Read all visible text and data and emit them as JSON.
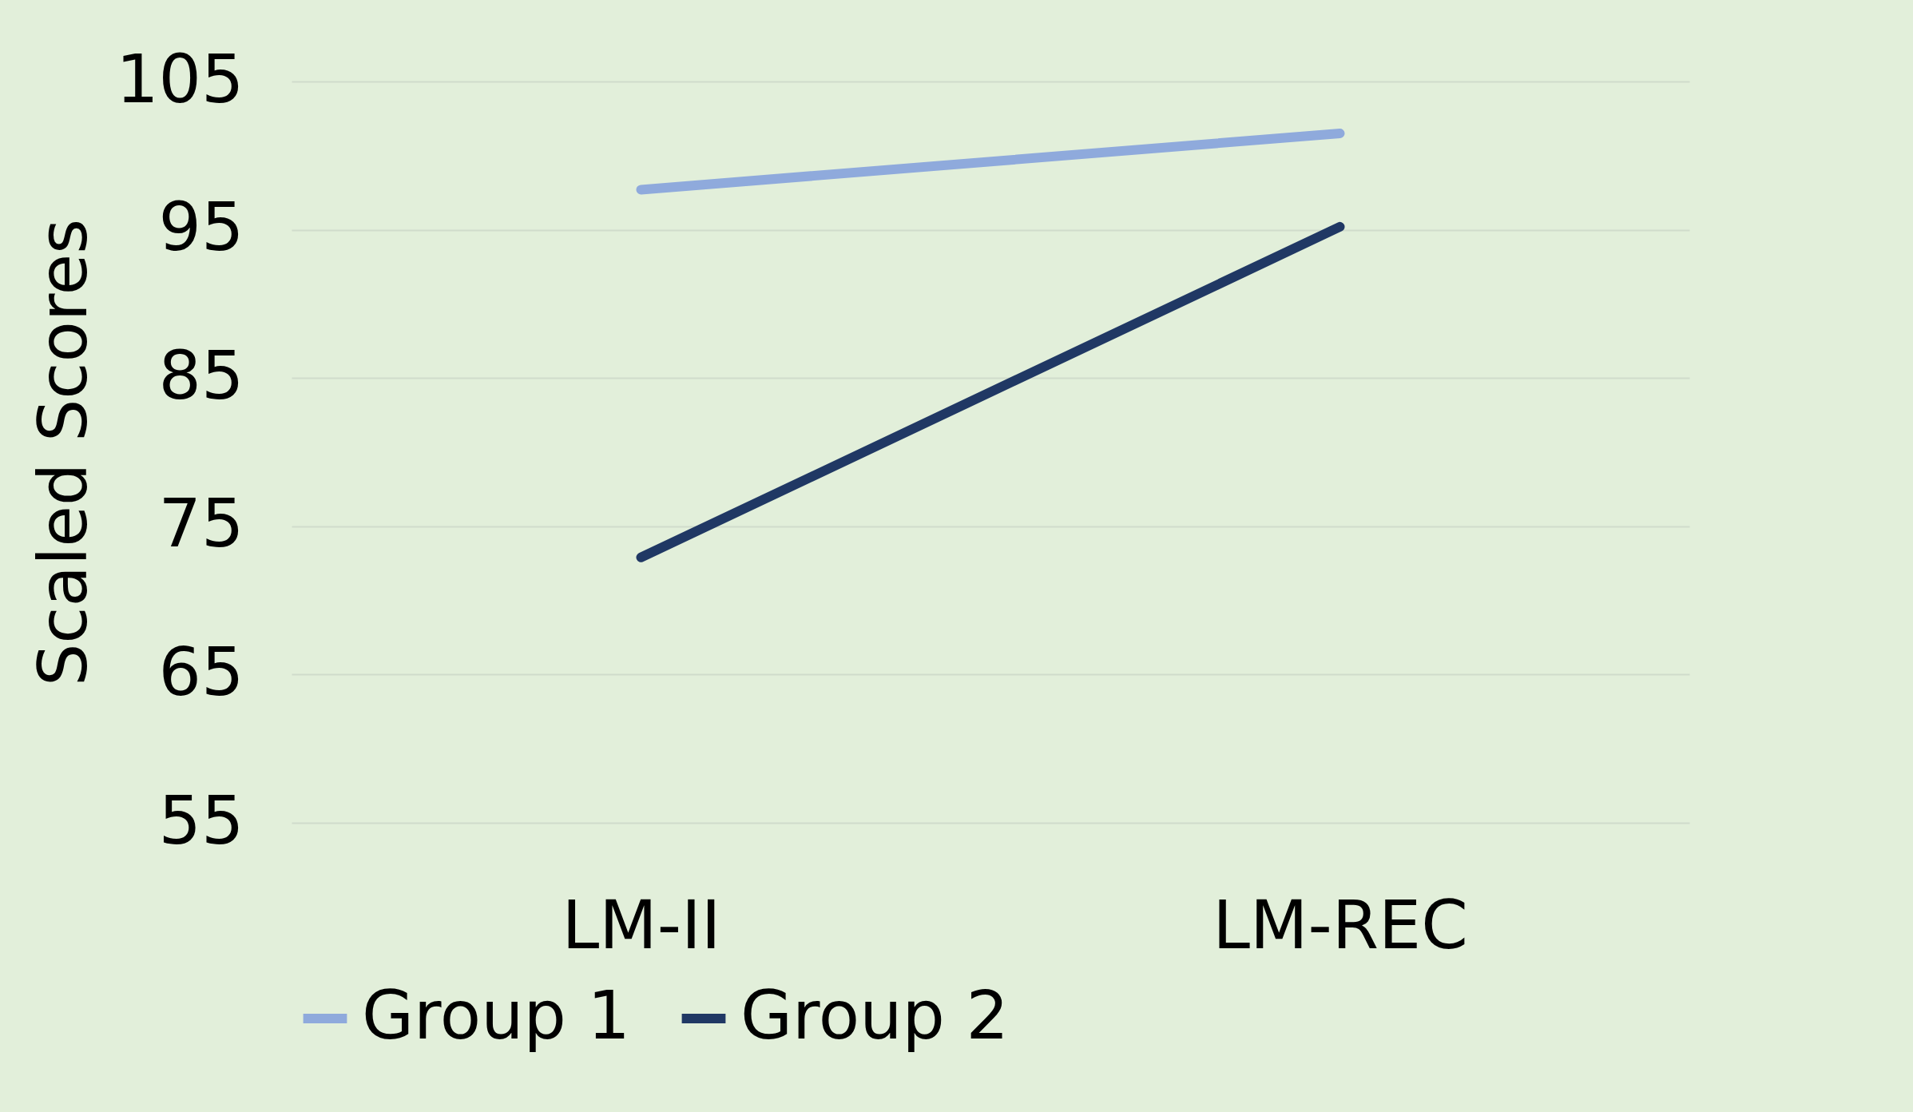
{
  "chart_data": {
    "type": "line",
    "ylabel": "Scaled Scores",
    "categories": [
      "LM-II",
      "LM-REC"
    ],
    "series": [
      {
        "name": "Group 1",
        "color": "#8faadc",
        "values": [
          97.7,
          101.5
        ]
      },
      {
        "name": "Group 2",
        "color": "#203864",
        "values": [
          72.9,
          95.2
        ]
      }
    ],
    "ylim": [
      55,
      105
    ],
    "yticks": [
      55,
      65,
      75,
      85,
      95,
      105
    ],
    "grid": "y",
    "legend": "bottom",
    "marker": "none",
    "line_style": "solid"
  }
}
